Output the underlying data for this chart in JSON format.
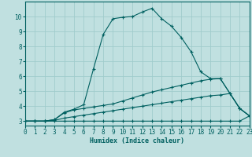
{
  "xlabel": "Humidex (Indice chaleur)",
  "background_color": "#c0e0e0",
  "grid_color": "#a0cccc",
  "line_color": "#006060",
  "xlim": [
    0,
    23
  ],
  "ylim": [
    2.7,
    11.0
  ],
  "xticks": [
    0,
    1,
    2,
    3,
    4,
    5,
    6,
    7,
    8,
    9,
    10,
    11,
    12,
    13,
    14,
    15,
    16,
    17,
    18,
    19,
    20,
    21,
    22,
    23
  ],
  "yticks": [
    3,
    4,
    5,
    6,
    7,
    8,
    9,
    10
  ],
  "series": [
    {
      "x": [
        0,
        1,
        2,
        3,
        4,
        5,
        6,
        7,
        8,
        9,
        10,
        11,
        12,
        13,
        14,
        15,
        16,
        17,
        18,
        19,
        20,
        21,
        22,
        23
      ],
      "y": [
        3.0,
        3.0,
        3.0,
        3.1,
        3.6,
        3.8,
        4.1,
        6.5,
        8.8,
        9.85,
        9.95,
        10.0,
        10.3,
        10.55,
        9.85,
        9.35,
        8.6,
        7.65,
        6.3,
        5.85,
        5.85,
        4.85,
        3.85,
        3.35
      ]
    },
    {
      "x": [
        0,
        1,
        2,
        3,
        4,
        5,
        6,
        7,
        8,
        9,
        10,
        11,
        12,
        13,
        14,
        15,
        16,
        17,
        18,
        19,
        20,
        21,
        22,
        23
      ],
      "y": [
        3.0,
        3.0,
        3.0,
        3.1,
        3.55,
        3.75,
        3.85,
        3.95,
        4.05,
        4.15,
        4.35,
        4.55,
        4.75,
        4.95,
        5.1,
        5.25,
        5.4,
        5.55,
        5.7,
        5.8,
        5.85,
        4.85,
        3.85,
        3.35
      ]
    },
    {
      "x": [
        0,
        1,
        2,
        3,
        4,
        5,
        6,
        7,
        8,
        9,
        10,
        11,
        12,
        13,
        14,
        15,
        16,
        17,
        18,
        19,
        20,
        21,
        22,
        23
      ],
      "y": [
        3.0,
        3.0,
        3.0,
        3.05,
        3.2,
        3.3,
        3.4,
        3.5,
        3.6,
        3.7,
        3.8,
        3.9,
        4.0,
        4.1,
        4.2,
        4.3,
        4.4,
        4.5,
        4.6,
        4.7,
        4.75,
        4.85,
        3.85,
        3.35
      ]
    },
    {
      "x": [
        0,
        1,
        2,
        3,
        4,
        5,
        6,
        7,
        8,
        9,
        10,
        11,
        12,
        13,
        14,
        15,
        16,
        17,
        18,
        19,
        20,
        21,
        22,
        23
      ],
      "y": [
        3.0,
        3.0,
        3.0,
        3.0,
        3.0,
        3.0,
        3.0,
        3.0,
        3.0,
        3.0,
        3.0,
        3.0,
        3.0,
        3.0,
        3.0,
        3.0,
        3.0,
        3.0,
        3.0,
        3.0,
        3.0,
        3.0,
        3.0,
        3.35
      ]
    }
  ]
}
